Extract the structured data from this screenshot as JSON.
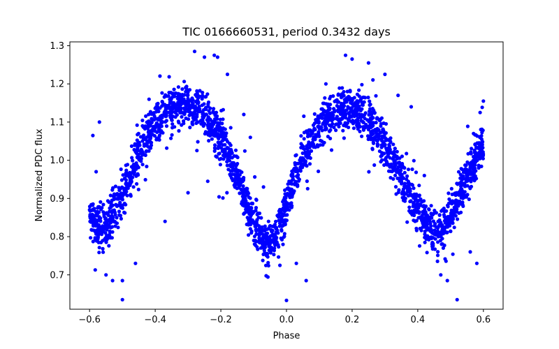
{
  "chart_data": {
    "type": "scatter",
    "title": "TIC 0166660531, period 0.3432 days",
    "xlabel": "Phase",
    "ylabel": "Normalized PDC flux",
    "xlim": [
      -0.66,
      0.66
    ],
    "ylim": [
      0.61,
      1.31
    ],
    "xticks": [
      -0.6,
      -0.4,
      -0.2,
      0.0,
      0.2,
      0.4,
      0.6
    ],
    "xtick_labels": [
      "−0.6",
      "−0.4",
      "−0.2",
      "0.0",
      "0.2",
      "0.4",
      "0.6"
    ],
    "yticks": [
      0.7,
      0.8,
      0.9,
      1.0,
      1.1,
      1.2,
      1.3
    ],
    "ytick_labels": [
      "0.7",
      "0.8",
      "0.9",
      "1.0",
      "1.1",
      "1.2",
      "1.3"
    ],
    "grid": false,
    "color": "#0000ff",
    "marker": "dot",
    "curve_points": [
      [
        -0.6,
        0.84
      ],
      [
        -0.58,
        0.825
      ],
      [
        -0.56,
        0.82
      ],
      [
        -0.54,
        0.835
      ],
      [
        -0.52,
        0.87
      ],
      [
        -0.5,
        0.91
      ],
      [
        -0.48,
        0.95
      ],
      [
        -0.46,
        0.99
      ],
      [
        -0.44,
        1.03
      ],
      [
        -0.42,
        1.065
      ],
      [
        -0.4,
        1.09
      ],
      [
        -0.38,
        1.11
      ],
      [
        -0.36,
        1.125
      ],
      [
        -0.34,
        1.135
      ],
      [
        -0.32,
        1.14
      ],
      [
        -0.3,
        1.14
      ],
      [
        -0.28,
        1.135
      ],
      [
        -0.26,
        1.125
      ],
      [
        -0.24,
        1.105
      ],
      [
        -0.22,
        1.08
      ],
      [
        -0.2,
        1.05
      ],
      [
        -0.18,
        1.01
      ],
      [
        -0.16,
        0.97
      ],
      [
        -0.14,
        0.925
      ],
      [
        -0.12,
        0.88
      ],
      [
        -0.1,
        0.835
      ],
      [
        -0.08,
        0.8
      ],
      [
        -0.06,
        0.78
      ],
      [
        -0.04,
        0.79
      ],
      [
        -0.02,
        0.825
      ],
      [
        0.0,
        0.875
      ],
      [
        0.02,
        0.93
      ],
      [
        0.04,
        0.98
      ],
      [
        0.06,
        1.02
      ],
      [
        0.08,
        1.055
      ],
      [
        0.1,
        1.08
      ],
      [
        0.12,
        1.1
      ],
      [
        0.14,
        1.115
      ],
      [
        0.16,
        1.125
      ],
      [
        0.18,
        1.13
      ],
      [
        0.2,
        1.13
      ],
      [
        0.22,
        1.125
      ],
      [
        0.24,
        1.11
      ],
      [
        0.26,
        1.09
      ],
      [
        0.28,
        1.065
      ],
      [
        0.3,
        1.035
      ],
      [
        0.32,
        1.0
      ],
      [
        0.34,
        0.965
      ],
      [
        0.36,
        0.93
      ],
      [
        0.38,
        0.895
      ],
      [
        0.4,
        0.865
      ],
      [
        0.42,
        0.84
      ],
      [
        0.44,
        0.82
      ],
      [
        0.46,
        0.815
      ],
      [
        0.48,
        0.825
      ],
      [
        0.5,
        0.85
      ],
      [
        0.52,
        0.89
      ],
      [
        0.54,
        0.935
      ],
      [
        0.56,
        0.975
      ],
      [
        0.58,
        1.01
      ],
      [
        0.6,
        1.04
      ]
    ],
    "outliers": [
      [
        -0.57,
        1.1
      ],
      [
        -0.59,
        1.065
      ],
      [
        -0.58,
        0.97
      ],
      [
        -0.55,
        0.7
      ],
      [
        -0.53,
        0.685
      ],
      [
        -0.5,
        0.635
      ],
      [
        -0.5,
        0.685
      ],
      [
        -0.46,
        0.73
      ],
      [
        -0.37,
        0.84
      ],
      [
        -0.3,
        0.915
      ],
      [
        -0.28,
        1.285
      ],
      [
        -0.25,
        1.27
      ],
      [
        -0.22,
        1.275
      ],
      [
        -0.21,
        1.27
      ],
      [
        -0.24,
        0.945
      ],
      [
        -0.18,
        1.225
      ],
      [
        -0.13,
        1.12
      ],
      [
        -0.11,
        1.06
      ],
      [
        -0.07,
        0.93
      ],
      [
        -0.02,
        0.725
      ],
      [
        0.0,
        0.633
      ],
      [
        0.03,
        0.73
      ],
      [
        0.06,
        0.685
      ],
      [
        0.12,
        1.2
      ],
      [
        0.18,
        1.275
      ],
      [
        0.2,
        1.265
      ],
      [
        0.25,
        1.255
      ],
      [
        0.3,
        1.225
      ],
      [
        0.34,
        1.17
      ],
      [
        0.38,
        1.14
      ],
      [
        0.42,
        0.96
      ],
      [
        0.47,
        0.7
      ],
      [
        0.49,
        0.685
      ],
      [
        0.52,
        0.635
      ],
      [
        0.56,
        0.76
      ],
      [
        0.58,
        0.73
      ],
      [
        0.6,
        1.155
      ],
      [
        0.59,
        1.125
      ],
      [
        0.57,
        1.07
      ]
    ]
  }
}
